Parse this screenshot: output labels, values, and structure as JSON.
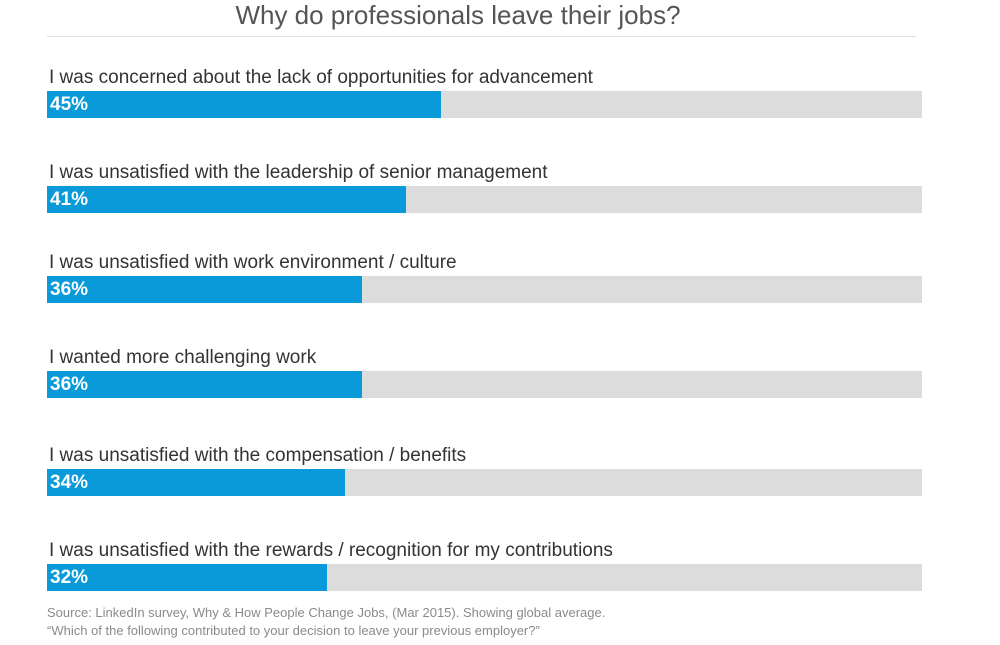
{
  "chart_data": {
    "type": "bar",
    "orientation": "horizontal",
    "title": "Why do professionals leave their jobs?",
    "categories": [
      "I was concerned about the lack of opportunities for advancement",
      "I was unsatisfied with the leadership of senior management",
      "I was unsatisfied with work environment / culture",
      "I wanted more challenging work",
      "I was unsatisfied with the compensation / benefits",
      "I was unsatisfied with the rewards / recognition for my contributions"
    ],
    "values": [
      45,
      41,
      36,
      36,
      34,
      32
    ],
    "value_labels": [
      "45%",
      "41%",
      "36%",
      "36%",
      "34%",
      "32%"
    ],
    "xlim": [
      0,
      100
    ],
    "unit": "%",
    "bar_color": "#0a9ad9",
    "track_color": "#dcdcdc",
    "grid": false,
    "legend": "none",
    "source_line1": "Source: LinkedIn survey, Why & How People Change Jobs, (Mar 2015). Showing global average.",
    "source_line2": "“Which of the following contributed to your decision to leave your previous employer?”"
  }
}
